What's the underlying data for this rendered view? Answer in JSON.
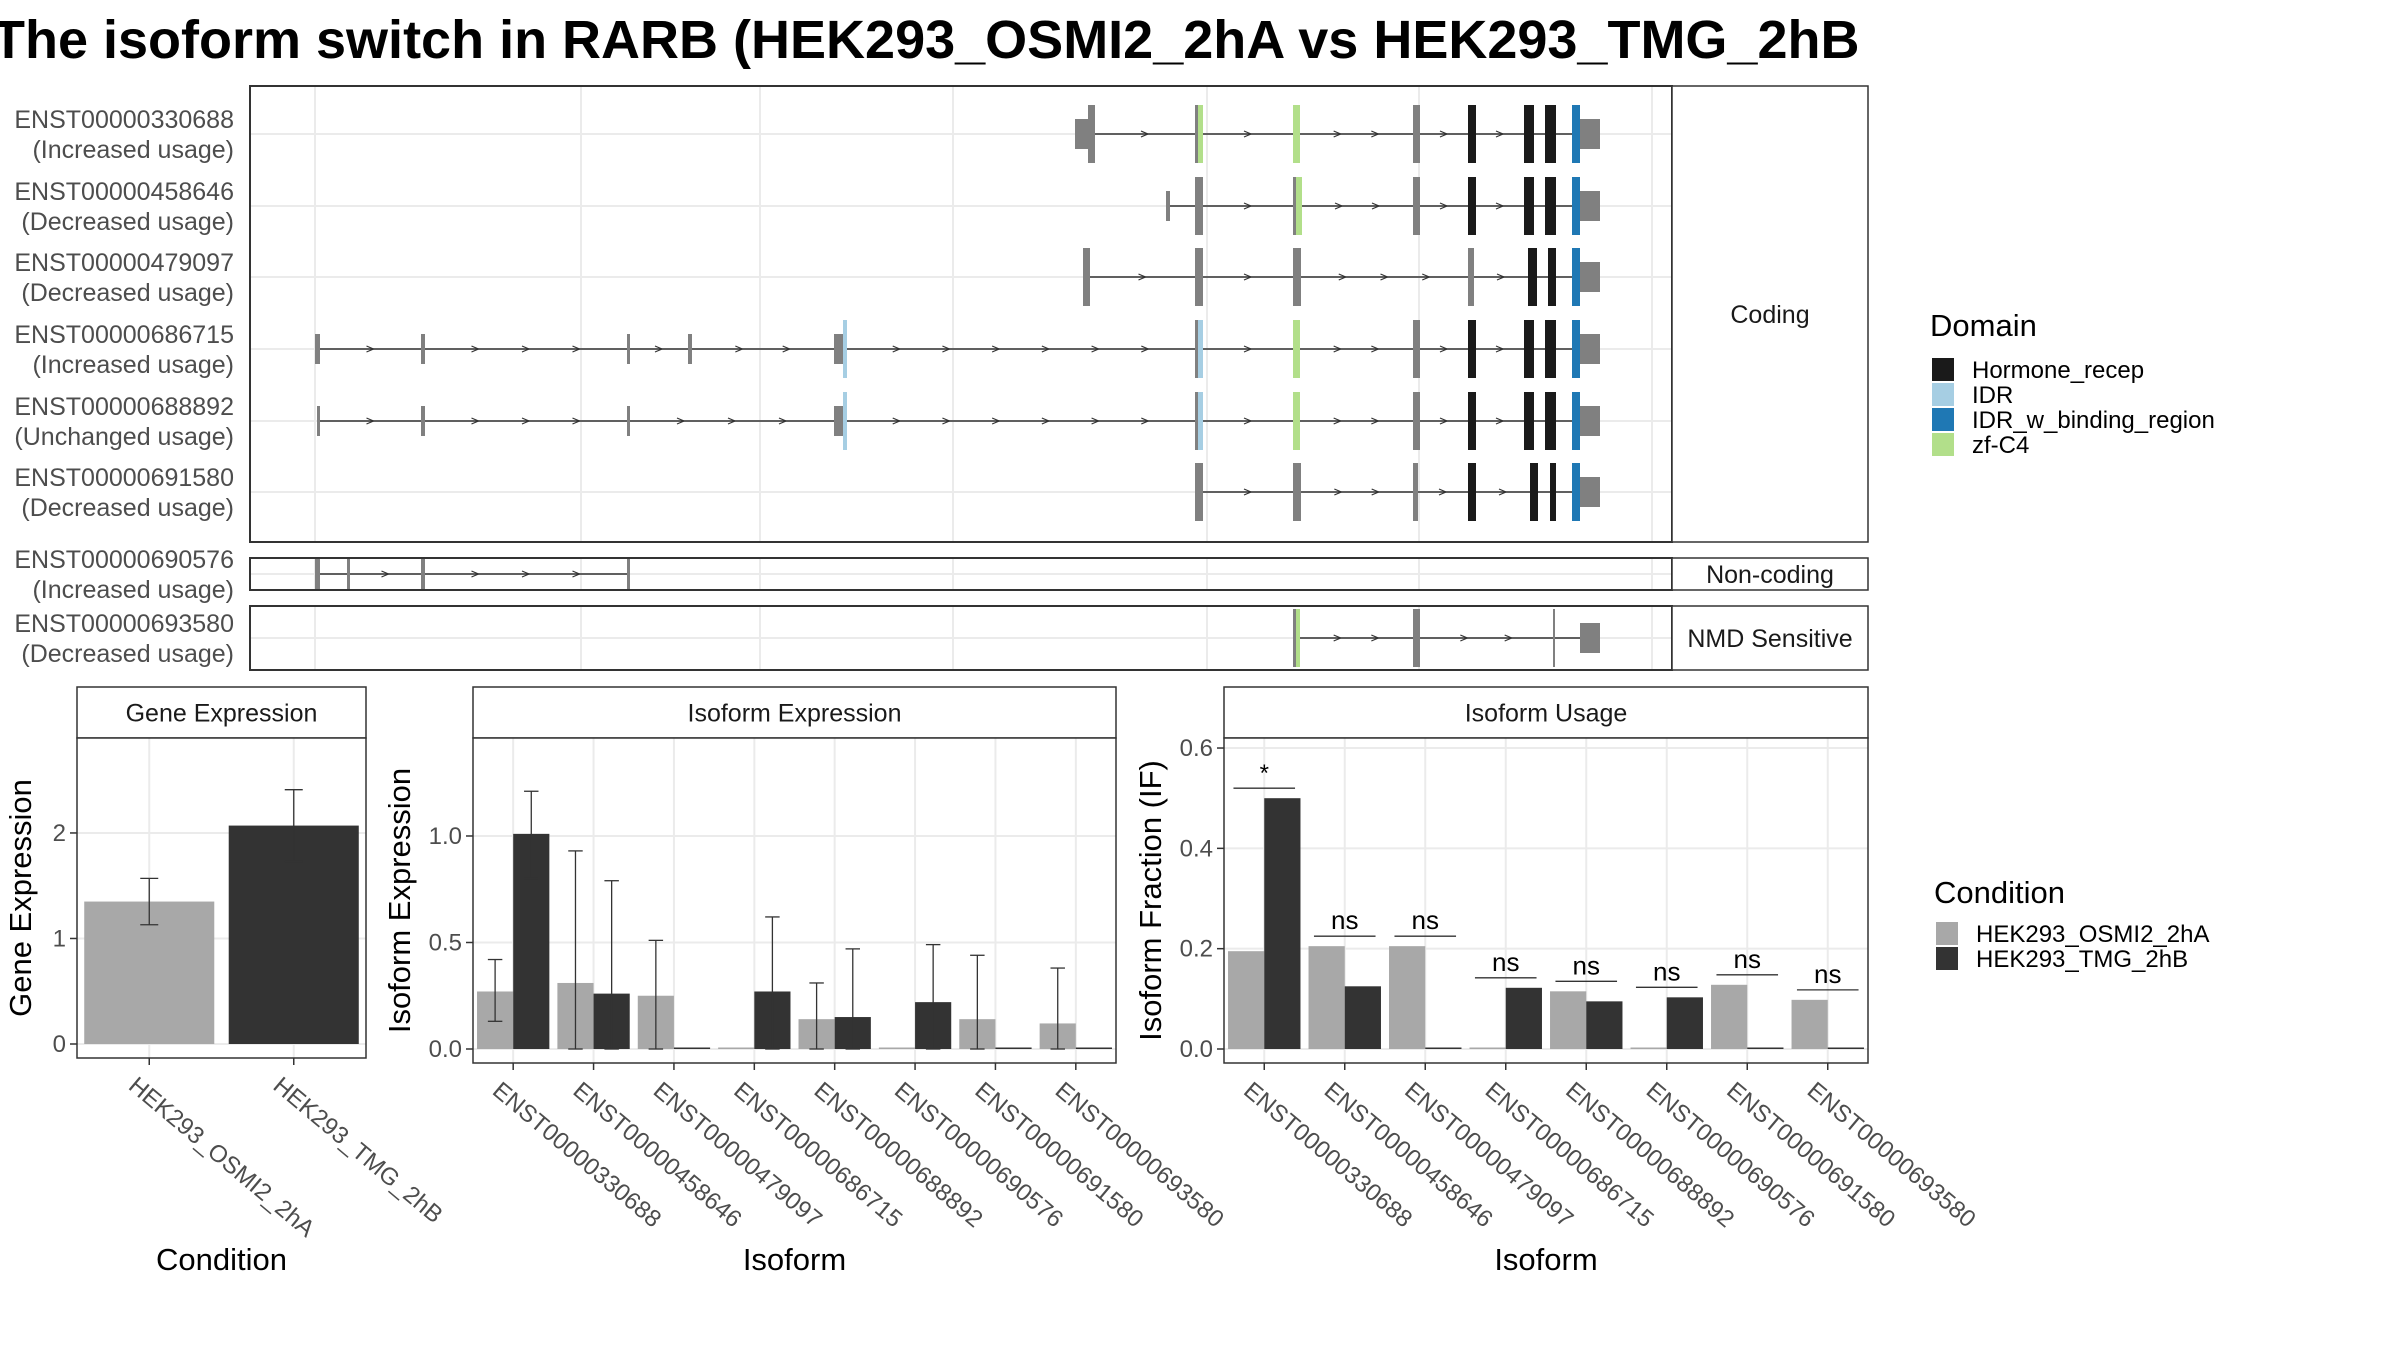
{
  "title": "The isoform switch in RARB (HEK293_OSMI2_2hA vs HEK293_TMG_2hB",
  "colors": {
    "hormone_recep": "#1a1a1a",
    "idr": "#a6cee3",
    "idr_w_binding_region": "#1f78b4",
    "zf_c4": "#b2df8a",
    "exon_grey": "#808080",
    "condition_a": "#a8a8a8",
    "condition_b": "#333333",
    "grid": "#ebebeb",
    "panel_border": "#333333"
  },
  "structure": {
    "facets": [
      {
        "label": "Coding",
        "isoforms": [
          0,
          1,
          2,
          3,
          4,
          5
        ]
      },
      {
        "label": "Non-coding",
        "isoforms": [
          6
        ]
      },
      {
        "label": "NMD Sensitive",
        "isoforms": [
          7
        ]
      }
    ],
    "isoforms": [
      {
        "id": "ENST00000330688",
        "usage": "(Increased usage)",
        "exons": [
          [
            1075,
            1088,
            "u"
          ],
          [
            1088,
            1095,
            "c"
          ],
          [
            1195,
            1198,
            "c"
          ],
          [
            1198,
            1203,
            "zf"
          ],
          [
            1293,
            1300,
            "zf"
          ],
          [
            1413,
            1420,
            "c"
          ],
          [
            1468,
            1476,
            "h"
          ],
          [
            1524,
            1534,
            "h"
          ],
          [
            1545,
            1556,
            "h"
          ],
          [
            1572,
            1580,
            "i"
          ],
          [
            1580,
            1600,
            "u"
          ]
        ]
      },
      {
        "id": "ENST00000458646",
        "usage": "(Decreased usage)",
        "exons": [
          [
            1166,
            1170,
            "u"
          ],
          [
            1195,
            1203,
            "c"
          ],
          [
            1293,
            1296,
            "c"
          ],
          [
            1296,
            1302,
            "zf"
          ],
          [
            1413,
            1420,
            "c"
          ],
          [
            1468,
            1476,
            "h"
          ],
          [
            1524,
            1534,
            "h"
          ],
          [
            1545,
            1556,
            "h"
          ],
          [
            1572,
            1580,
            "i"
          ],
          [
            1580,
            1600,
            "u"
          ]
        ]
      },
      {
        "id": "ENST00000479097",
        "usage": "(Decreased usage)",
        "exons": [
          [
            1083,
            1090,
            "c"
          ],
          [
            1195,
            1203,
            "c"
          ],
          [
            1293,
            1301,
            "c"
          ],
          [
            1468,
            1474,
            "c"
          ],
          [
            1528,
            1537,
            "h"
          ],
          [
            1548,
            1556,
            "h"
          ],
          [
            1572,
            1580,
            "i"
          ],
          [
            1580,
            1600,
            "u"
          ]
        ]
      },
      {
        "id": "ENST00000686715",
        "usage": "(Increased usage)",
        "exons": [
          [
            315,
            320,
            "u"
          ],
          [
            421,
            425,
            "u"
          ],
          [
            627,
            630,
            "u"
          ],
          [
            688,
            692,
            "u"
          ],
          [
            834,
            843,
            "u"
          ],
          [
            843,
            847,
            "ld"
          ],
          [
            1195,
            1198,
            "c"
          ],
          [
            1198,
            1203,
            "ld"
          ],
          [
            1293,
            1300,
            "zf"
          ],
          [
            1413,
            1420,
            "c"
          ],
          [
            1468,
            1476,
            "h"
          ],
          [
            1524,
            1534,
            "h"
          ],
          [
            1545,
            1556,
            "h"
          ],
          [
            1572,
            1580,
            "i"
          ],
          [
            1580,
            1600,
            "u"
          ]
        ]
      },
      {
        "id": "ENST00000688892",
        "usage": "(Unchanged usage)",
        "exons": [
          [
            317,
            320,
            "u"
          ],
          [
            421,
            425,
            "u"
          ],
          [
            627,
            630,
            "u"
          ],
          [
            834,
            843,
            "u"
          ],
          [
            843,
            847,
            "ld"
          ],
          [
            1195,
            1198,
            "c"
          ],
          [
            1198,
            1203,
            "ld"
          ],
          [
            1293,
            1300,
            "zf"
          ],
          [
            1413,
            1420,
            "c"
          ],
          [
            1468,
            1476,
            "h"
          ],
          [
            1524,
            1534,
            "h"
          ],
          [
            1545,
            1556,
            "h"
          ],
          [
            1572,
            1580,
            "i"
          ],
          [
            1580,
            1600,
            "u"
          ]
        ]
      },
      {
        "id": "ENST00000691580",
        "usage": "(Decreased usage)",
        "exons": [
          [
            1195,
            1203,
            "c"
          ],
          [
            1293,
            1301,
            "c"
          ],
          [
            1413,
            1418,
            "c"
          ],
          [
            1468,
            1476,
            "h"
          ],
          [
            1530,
            1538,
            "h"
          ],
          [
            1550,
            1556,
            "h"
          ],
          [
            1572,
            1580,
            "i"
          ],
          [
            1580,
            1600,
            "u"
          ]
        ]
      },
      {
        "id": "ENST00000690576",
        "usage": "(Increased usage)",
        "exons": [
          [
            315,
            320,
            "u"
          ],
          [
            347,
            350,
            "u"
          ],
          [
            421,
            425,
            "u"
          ],
          [
            627,
            630,
            "u"
          ]
        ]
      },
      {
        "id": "ENST00000693580",
        "usage": "(Decreased usage)",
        "exons": [
          [
            1293,
            1296,
            "c"
          ],
          [
            1296,
            1300,
            "zf"
          ],
          [
            1413,
            1420,
            "c"
          ],
          [
            1553,
            1555,
            "c"
          ],
          [
            1580,
            1600,
            "u"
          ]
        ]
      }
    ]
  },
  "legends": {
    "domain": {
      "title": "Domain",
      "items": [
        {
          "label": "Hormone_recep",
          "color": "#1a1a1a"
        },
        {
          "label": "IDR",
          "color": "#a6cee3"
        },
        {
          "label": "IDR_w_binding_region",
          "color": "#1f78b4"
        },
        {
          "label": "zf-C4",
          "color": "#b2df8a"
        }
      ]
    },
    "condition": {
      "title": "Condition",
      "items": [
        {
          "label": "HEK293_OSMI2_2hA",
          "color": "#a8a8a8"
        },
        {
          "label": "HEK293_TMG_2hB",
          "color": "#333333"
        }
      ]
    }
  },
  "chart_data": [
    {
      "type": "bar",
      "title": "Gene Expression",
      "xlabel": "Condition",
      "ylabel": "Gene Expression",
      "ylim": [
        0,
        2.9
      ],
      "yticks": [
        "0",
        "1",
        "2"
      ],
      "categories": [
        "HEK293_OSMI2_2hA",
        "HEK293_TMG_2hB"
      ],
      "values": [
        1.35,
        2.07
      ],
      "errors": [
        [
          1.13,
          1.57
        ],
        [
          1.73,
          2.41
        ]
      ]
    },
    {
      "type": "bar",
      "title": "Isoform Expression",
      "xlabel": "Isoform",
      "ylabel": "Isoform Expression",
      "ylim": [
        0,
        1.46
      ],
      "yticks": [
        "0.0",
        "0.5",
        "1.0"
      ],
      "categories": [
        "ENST00000330688",
        "ENST00000458646",
        "ENST00000479097",
        "ENST00000686715",
        "ENST00000688892",
        "ENST00000690576",
        "ENST00000691580",
        "ENST00000693580"
      ],
      "series": [
        {
          "name": "HEK293_OSMI2_2hA",
          "values": [
            0.27,
            0.31,
            0.25,
            0.0,
            0.14,
            0.0,
            0.14,
            0.12
          ],
          "errors": [
            [
              0.13,
              0.42
            ],
            [
              0.0,
              0.93
            ],
            [
              0.0,
              0.51
            ],
            [
              0,
              0
            ],
            [
              0.0,
              0.31
            ],
            [
              0,
              0
            ],
            [
              0.0,
              0.44
            ],
            [
              0.0,
              0.38
            ]
          ]
        },
        {
          "name": "HEK293_TMG_2hB",
          "values": [
            1.01,
            0.26,
            0.0,
            0.27,
            0.15,
            0.22,
            0.0,
            0.0
          ],
          "errors": [
            [
              0.8,
              1.21
            ],
            [
              0.0,
              0.79
            ],
            [
              0,
              0
            ],
            [
              0.0,
              0.62
            ],
            [
              0.0,
              0.47
            ],
            [
              0.0,
              0.49
            ],
            [
              0,
              0
            ],
            [
              0,
              0
            ]
          ]
        }
      ]
    },
    {
      "type": "bar",
      "title": "Isoform Usage",
      "xlabel": "Isoform",
      "ylabel": "Isoform Fraction (IF)",
      "ylim": [
        0,
        0.62
      ],
      "yticks": [
        "0.0",
        "0.2",
        "0.4",
        "0.6"
      ],
      "categories": [
        "ENST00000330688",
        "ENST00000458646",
        "ENST00000479097",
        "ENST00000686715",
        "ENST00000688892",
        "ENST00000690576",
        "ENST00000691580",
        "ENST00000693580"
      ],
      "series": [
        {
          "name": "HEK293_OSMI2_2hA",
          "values": [
            0.195,
            0.205,
            0.205,
            0.0,
            0.115,
            0.0,
            0.128,
            0.098
          ]
        },
        {
          "name": "HEK293_TMG_2hB",
          "values": [
            0.5,
            0.125,
            0.0,
            0.122,
            0.095,
            0.103,
            0.0,
            0.0
          ]
        }
      ],
      "significance": [
        "*",
        "ns",
        "ns",
        "ns",
        "ns",
        "ns",
        "ns",
        "ns"
      ]
    }
  ]
}
